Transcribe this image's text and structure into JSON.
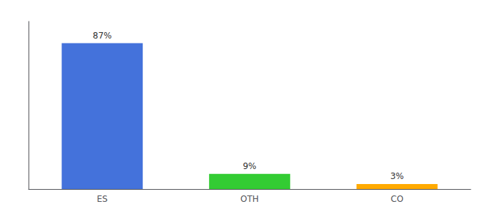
{
  "chart_data": {
    "type": "bar",
    "categories": [
      "ES",
      "OTH",
      "CO"
    ],
    "values": [
      87,
      9,
      3
    ],
    "value_labels": [
      "87%",
      "9%",
      "3%"
    ],
    "colors": [
      "#4472db",
      "#33cc33",
      "#ffaa00"
    ],
    "ylim": [
      0,
      100
    ],
    "grid": false,
    "tick_labels": "x",
    "data_labels": true
  }
}
